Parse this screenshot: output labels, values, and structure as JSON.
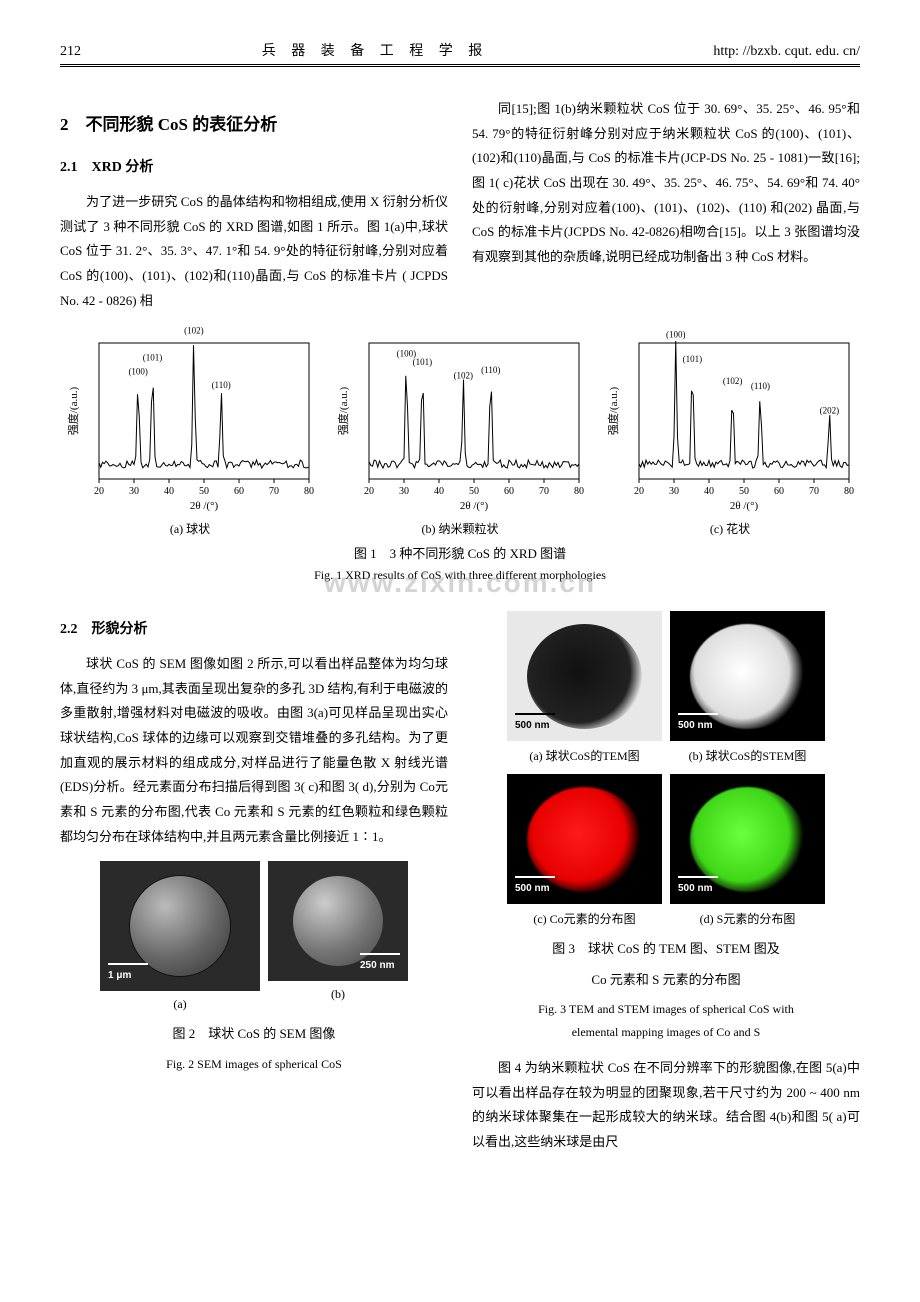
{
  "header": {
    "page_number": "212",
    "journal_title": "兵 器 装 备 工 程 学 报",
    "url": "http: //bzxb. cqut. edu. cn/"
  },
  "section2": {
    "title": "2　不同形貌 CoS 的表征分析"
  },
  "section21": {
    "title": "2.1　XRD 分析",
    "left_text": "为了进一步研究 CoS 的晶体结构和物相组成,使用 X 衍射分析仪测试了 3 种不同形貌 CoS 的 XRD 图谱,如图 1 所示。图 1(a)中,球状 CoS 位于 31. 2°、35. 3°、47. 1°和 54. 9°处的特征衍射峰,分别对应着 CoS 的(100)、(101)、(102)和(110)晶面,与 CoS 的标准卡片 ( JCPDS No. 42 - 0826) 相",
    "right_text": "同[15];图 1(b)纳米颗粒状 CoS 位于 30. 69°、35. 25°、46. 95°和 54. 79°的特征衍射峰分别对应于纳米颗粒状 CoS 的(100)、(101)、(102)和(110)晶面,与 CoS 的标准卡片(JCP-DS No. 25 - 1081)一致[16];图 1( c)花状 CoS 出现在 30. 49°、35. 25°、46. 75°、54. 69°和 74. 40°处的衍射峰,分别对应着(100)、(101)、(102)、(110) 和(202) 晶面,与 CoS 的标准卡片(JCPDS No. 42-0826)相吻合[15]。以上 3 张图谱均没有观察到其他的杂质峰,说明已经成功制备出 3 种 CoS 材料。"
  },
  "xrd_charts": {
    "xaxis_label": "2θ /(°)",
    "yaxis_label": "强度/(a.u.)",
    "xlim": [
      20,
      80
    ],
    "xticks": [
      20,
      30,
      40,
      50,
      60,
      70,
      80
    ],
    "line_color": "#000000",
    "background_color": "#ffffff",
    "label_fontsize": 9,
    "axis_fontsize": 11,
    "charts": [
      {
        "subcaption": "(a) 球状",
        "peaks": [
          {
            "x": 31.2,
            "h": 65,
            "label": "(100)"
          },
          {
            "x": 35.3,
            "h": 75,
            "label": "(101)"
          },
          {
            "x": 47.1,
            "h": 95,
            "label": "(102)"
          },
          {
            "x": 54.9,
            "h": 55,
            "label": "(110)"
          }
        ]
      },
      {
        "subcaption": "(b) 纳米颗粒状",
        "peaks": [
          {
            "x": 30.69,
            "h": 78,
            "label": "(100)"
          },
          {
            "x": 35.25,
            "h": 72,
            "label": "(101)"
          },
          {
            "x": 46.95,
            "h": 62,
            "label": "(102)"
          },
          {
            "x": 54.79,
            "h": 66,
            "label": "(110)"
          }
        ]
      },
      {
        "subcaption": "(c) 花状",
        "peaks": [
          {
            "x": 30.49,
            "h": 92,
            "label": "(100)"
          },
          {
            "x": 35.25,
            "h": 74,
            "label": "(101)"
          },
          {
            "x": 46.75,
            "h": 58,
            "label": "(102)"
          },
          {
            "x": 54.69,
            "h": 54,
            "label": "(110)"
          },
          {
            "x": 74.4,
            "h": 36,
            "label": "(202)"
          }
        ]
      }
    ]
  },
  "fig1": {
    "caption_cn": "图 1　3 种不同形貌 CoS 的 XRD 图谱",
    "caption_en": "Fig. 1 XRD results of CoS with three different morphologies"
  },
  "watermark": "www.zixin.com.cn",
  "section22": {
    "title": "2.2　形貌分析",
    "text": "球状 CoS 的 SEM 图像如图 2 所示,可以看出样品整体为均匀球体,直径约为 3 μm,其表面呈现出复杂的多孔 3D 结构,有利于电磁波的多重散射,增强材料对电磁波的吸收。由图 3(a)可见样品呈现出实心球状结构,CoS 球体的边缘可以观察到交错堆叠的多孔结构。为了更加直观的展示材料的组成成分,对样品进行了能量色散 X 射线光谱(EDS)分析。经元素面分布扫描后得到图 3( c)和图 3( d),分别为 Co元素和 S 元素的分布图,代表 Co 元素和 S 元素的红色颗粒和绿色颗粒都均匀分布在球体结构中,并且两元素含量比例接近 1∶1。"
  },
  "fig2": {
    "scale_a": "1 μm",
    "scale_b": "250 nm",
    "label_a": "(a)",
    "label_b": "(b)",
    "caption_cn": "图 2　球状 CoS 的 SEM 图像",
    "caption_en": "Fig. 2 SEM images of spherical CoS"
  },
  "fig3": {
    "scale": "500 nm",
    "label_a": "(a) 球状CoS的TEM图",
    "label_b": "(b) 球状CoS的STEM图",
    "label_c": "(c) Co元素的分布图",
    "label_d": "(d) S元素的分布图",
    "caption_cn_l1": "图 3　球状 CoS 的 TEM 图、STEM 图及",
    "caption_cn_l2": "Co 元素和 S 元素的分布图",
    "caption_en_l1": "Fig. 3 TEM and STEM images of spherical CoS with",
    "caption_en_l2": "elemental mapping images of Co and S",
    "colors": {
      "co": "#ff0000",
      "s": "#4dff1a"
    }
  },
  "right_bottom_text": "图 4 为纳米颗粒状 CoS 在不同分辨率下的形貌图像,在图 5(a)中可以看出样品存在较为明显的团聚现象,若干尺寸约为 200 ~ 400 nm 的纳米球体聚集在一起形成较大的纳米球。结合图 4(b)和图 5( a)可以看出,这些纳米球是由尺"
}
